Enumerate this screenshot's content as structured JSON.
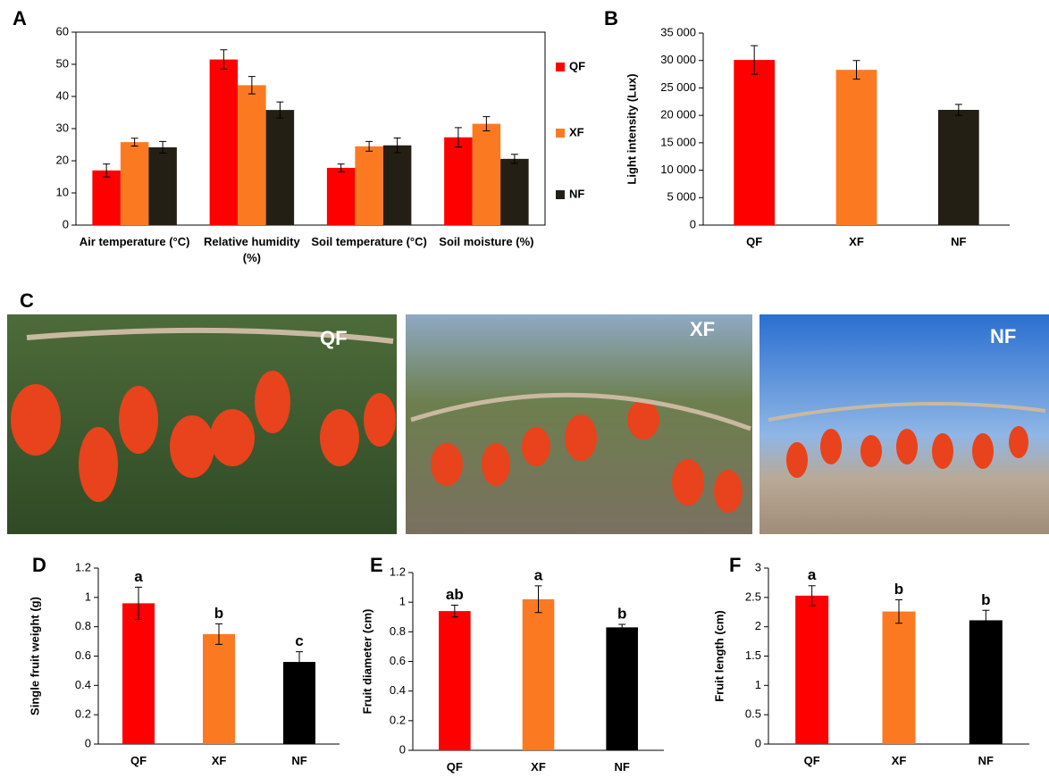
{
  "chart_data": [
    {
      "type": "bar",
      "panel": "A",
      "categories": [
        "Air temperature (°C)",
        "Relative humidity (%)",
        "Soil temperature (°C)",
        "Soil moisture (%)"
      ],
      "series": [
        {
          "name": "QF",
          "color": "#ff0000",
          "values": [
            17,
            51.5,
            17.8,
            27.3
          ],
          "errors": [
            2,
            3,
            1.2,
            3
          ]
        },
        {
          "name": "XF",
          "color": "#fb7a21",
          "values": [
            25.8,
            43.5,
            24.5,
            31.5
          ],
          "errors": [
            1.2,
            2.7,
            1.5,
            2.2
          ]
        },
        {
          "name": "NF",
          "color": "#231f15",
          "values": [
            24.2,
            35.8,
            24.8,
            20.6
          ],
          "errors": [
            1.8,
            2.5,
            2.3,
            1.4
          ]
        }
      ],
      "ylim": [
        0,
        60
      ],
      "yticks": [
        0,
        10,
        20,
        30,
        40,
        50,
        60
      ],
      "grid": false,
      "legend": "right"
    },
    {
      "type": "bar",
      "panel": "B",
      "ylabel": "Light intensity (Lux)",
      "categories": [
        "QF",
        "XF",
        "NF"
      ],
      "values": [
        30100,
        28300,
        21000
      ],
      "errors": [
        2600,
        1700,
        1000
      ],
      "colors": [
        "#ff0000",
        "#fb7a21",
        "#231f15"
      ],
      "ylim": [
        0,
        35000
      ],
      "yticks": [
        0,
        {
          "value": 5000,
          "label": "5 000"
        },
        {
          "value": 10000,
          "label": "10 000"
        },
        {
          "value": 15000,
          "label": "15 000"
        },
        {
          "value": 20000,
          "label": "20 000"
        },
        {
          "value": 25000,
          "label": "25 000"
        },
        {
          "value": 30000,
          "label": "30 000"
        },
        {
          "value": 35000,
          "label": "35 000"
        }
      ],
      "grid": false
    },
    {
      "type": "bar",
      "panel": "D",
      "ylabel": "Single fruit weight (g)",
      "categories": [
        "QF",
        "XF",
        "NF"
      ],
      "values": [
        0.96,
        0.75,
        0.56
      ],
      "errors": [
        0.11,
        0.07,
        0.07
      ],
      "annotations": [
        "a",
        "b",
        "c"
      ],
      "colors": [
        "#ff0000",
        "#fb7a21",
        "#000000"
      ],
      "ylim": [
        0,
        1.2
      ],
      "yticks": [
        0,
        0.2,
        0.4,
        0.6,
        0.8,
        1,
        1.2
      ],
      "grid": false
    },
    {
      "type": "bar",
      "panel": "E",
      "ylabel": "Fruit diameter (cm)",
      "categories": [
        "QF",
        "XF",
        "NF"
      ],
      "values": [
        0.94,
        1.02,
        0.83
      ],
      "errors": [
        0.04,
        0.09,
        0.02
      ],
      "annotations": [
        "ab",
        "a",
        "b"
      ],
      "colors": [
        "#ff0000",
        "#fb7a21",
        "#000000"
      ],
      "ylim": [
        0,
        1.2
      ],
      "yticks": [
        0,
        0.2,
        0.4,
        0.6,
        0.8,
        1,
        1.2
      ],
      "grid": false
    },
    {
      "type": "bar",
      "panel": "F",
      "ylabel": "Fruit length (cm)",
      "categories": [
        "QF",
        "XF",
        "NF"
      ],
      "values": [
        2.53,
        2.26,
        2.11
      ],
      "errors": [
        0.17,
        0.2,
        0.17
      ],
      "annotations": [
        "a",
        "b",
        "b"
      ],
      "colors": [
        "#ff0000",
        "#fb7a21",
        "#000000"
      ],
      "ylim": [
        0,
        3
      ],
      "yticks": [
        0,
        0.5,
        1,
        1.5,
        2,
        2.5,
        3
      ],
      "grid": false
    }
  ],
  "photos": {
    "panel": "C",
    "labels": [
      "QF",
      "XF",
      "NF"
    ]
  }
}
